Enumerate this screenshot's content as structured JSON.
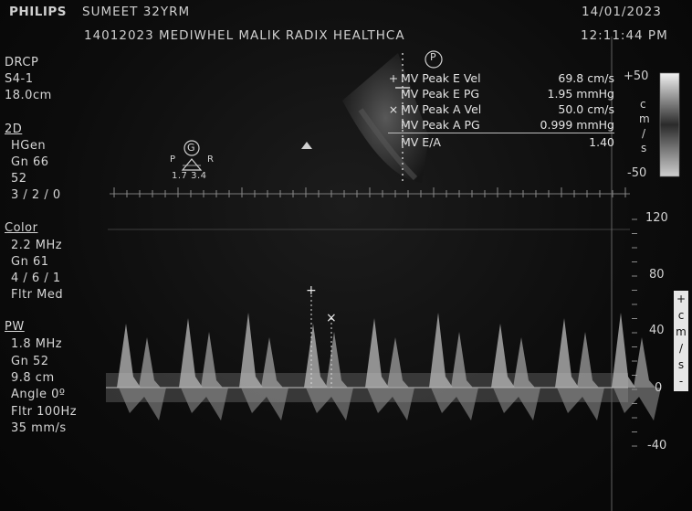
{
  "header": {
    "brand": "PHILIPS",
    "patient": "SUMEET 32YRM",
    "date": "14/01/2023",
    "id_line": "14012023 MEDIWHEL  MALIK RADIX HEALTHCA",
    "time": "12:11:44 PM"
  },
  "left_panel": {
    "mode": "DRCP",
    "probe": "S4-1",
    "depth": "18.0cm",
    "section_2d": {
      "title": "2D",
      "lines": [
        "HGen",
        "Gn 66",
        "52",
        "3 / 2 / 0"
      ]
    },
    "section_color": {
      "title": "Color",
      "lines": [
        "2.2 MHz",
        "Gn 61",
        "4 / 6 / 1",
        "Fltr Med"
      ]
    },
    "section_pw": {
      "title": "PW",
      "lines": [
        "1.8 MHz",
        "Gn 52",
        "9.8 cm",
        "Angle 0º",
        "Fltr 100Hz",
        "35 mm/s"
      ]
    }
  },
  "orientation": {
    "marker": "G",
    "left_letter": "P",
    "right_letter": "R",
    "values": "1.7 3.4",
    "p_badge": "P"
  },
  "measurements": [
    {
      "marker": "+",
      "label": "MV Peak E Vel",
      "value": "69.8 cm/s"
    },
    {
      "marker": "",
      "label": "MV Peak E PG",
      "value": "1.95 mmHg"
    },
    {
      "marker": "×",
      "label": "MV Peak A Vel",
      "value": "50.0 cm/s"
    },
    {
      "marker": "",
      "label": "MV Peak A PG",
      "value": "0.999 mmHg"
    },
    {
      "marker": "",
      "label": "MV E/A",
      "value": "1.40"
    }
  ],
  "color_bar": {
    "top": "+50",
    "bottom": "-50",
    "unit_letters": [
      "c",
      "m",
      "/",
      "s"
    ]
  },
  "velocity_scale": {
    "ticks": [
      "120",
      "80",
      "40",
      "0",
      "-40"
    ],
    "unit_letters": [
      "+",
      "c",
      "m",
      "/",
      "s",
      "-"
    ]
  },
  "colors": {
    "background": "#0c0c0c",
    "text": "#d6d6d6",
    "spectrum": "#d0d0d0"
  }
}
